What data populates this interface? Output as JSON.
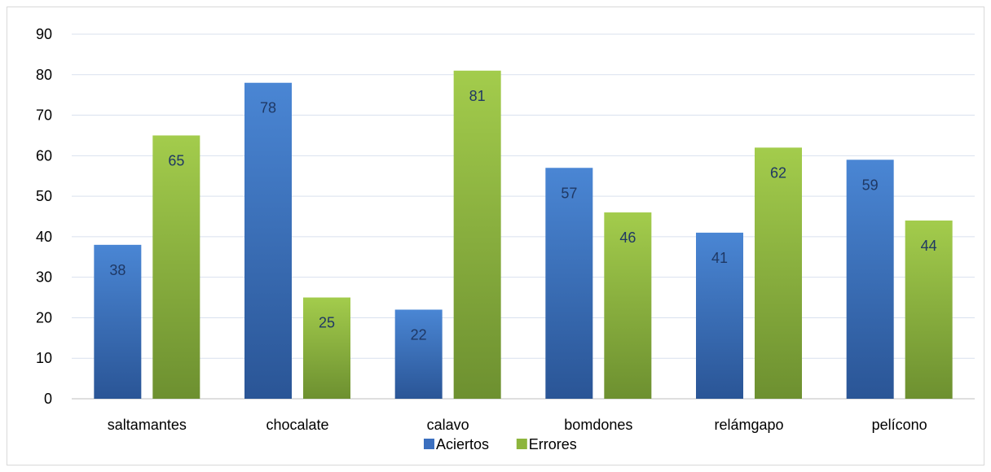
{
  "chart_data": {
    "type": "bar",
    "categories": [
      "saltamantes",
      "chocalate",
      "calavo",
      "bomdones",
      "relámgapo",
      "pelícono"
    ],
    "series": [
      {
        "name": "Aciertos",
        "values": [
          38,
          78,
          22,
          57,
          41,
          59
        ],
        "color": "#3b6fbf",
        "color_top": "#4a86d4",
        "color_bottom": "#2a5596"
      },
      {
        "name": "Errores",
        "values": [
          65,
          25,
          81,
          46,
          62,
          44
        ],
        "color": "#8db53c",
        "color_top": "#a3cc4c",
        "color_bottom": "#6d9030"
      }
    ],
    "ylim": [
      0,
      90
    ],
    "yticks": [
      0,
      10,
      20,
      30,
      40,
      50,
      60,
      70,
      80,
      90
    ],
    "grid": true,
    "legend": "bottom",
    "data_labels": true,
    "title": "",
    "xlabel": "",
    "ylabel": ""
  }
}
